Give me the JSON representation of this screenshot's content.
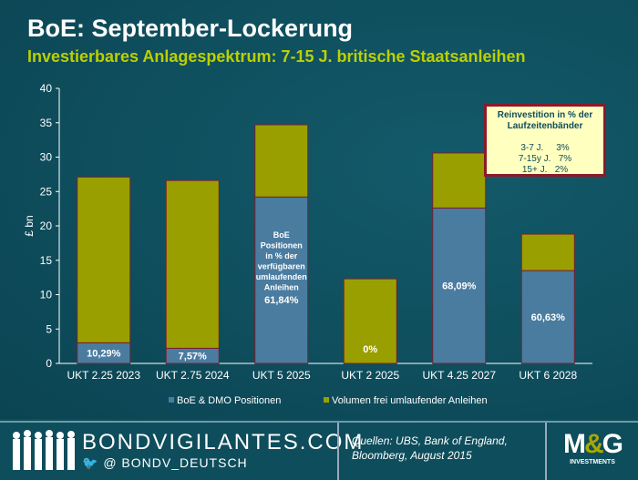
{
  "header": {
    "title": "BoE: September-Lockerung",
    "subtitle": "Investierbares Anlagespektrum: 7-15 J. britische Staatsanleihen"
  },
  "chart_data": {
    "type": "bar",
    "stacked": true,
    "categories": [
      "UKT 2.25 2023",
      "UKT 2.75 2024",
      "UKT 5 2025",
      "UKT 2 2025",
      "UKT 4.25 2027",
      "UKT 6 2028"
    ],
    "series": [
      {
        "name": "BoE & DMO Positionen",
        "color": "#4a7ca0",
        "values": [
          3.0,
          2.2,
          24.2,
          0,
          22.6,
          13.5
        ]
      },
      {
        "name": "Volumen frei umlaufender Anleihen",
        "color": "#9a9f00",
        "values": [
          24.1,
          24.4,
          10.5,
          12.3,
          8.0,
          5.3
        ]
      }
    ],
    "data_labels": [
      "10,29%",
      "7,57%",
      "61,84%",
      "0%",
      "68,09%",
      "60,63%"
    ],
    "bar_note": [
      "BoE",
      "Positionen",
      "in % der",
      "verfügbaren",
      "umlaufenden",
      "Anleihen"
    ],
    "ylabel": "£ bn",
    "ylim": [
      0,
      40
    ],
    "yticks": [
      0,
      5,
      10,
      15,
      20,
      25,
      30,
      35,
      40
    ],
    "legend": "bottom"
  },
  "reinvest_box": {
    "title1": "Reinvestition in % der",
    "title2": "Laufzeitenbänder",
    "rows": [
      "3-7 J.     3%",
      "7-15y J.   7%",
      "15+ J.   2%"
    ]
  },
  "footer": {
    "site": "BONDVIGILANTES.COM",
    "twitter": "@ BONDV_DEUTSCH",
    "source1": "Quellen: UBS, Bank of England,",
    "source2": "Bloomberg, August 2015",
    "logo": "M&G INVESTMENTS"
  }
}
